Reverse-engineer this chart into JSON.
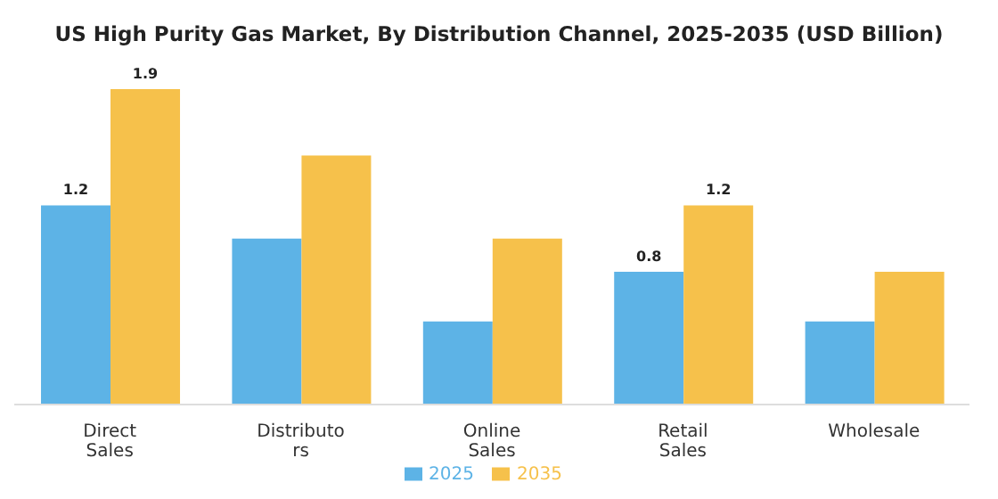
{
  "chart_data": {
    "type": "bar",
    "title": "US High Purity Gas Market, By Distribution Channel, 2025-2035 (USD Billion)",
    "categories": [
      "Direct Sales",
      "Distributors",
      "Online Sales",
      "Retail Sales",
      "Wholesale"
    ],
    "series": [
      {
        "name": "2025",
        "color": "#5db3e6",
        "values": [
          1.2,
          1.0,
          0.5,
          0.8,
          0.5
        ],
        "value_labels": [
          "1.2",
          null,
          null,
          "0.8",
          null
        ]
      },
      {
        "name": "2035",
        "color": "#f6c14b",
        "values": [
          1.9,
          1.5,
          1.0,
          1.2,
          0.8
        ],
        "value_labels": [
          "1.9",
          null,
          null,
          "1.2",
          null
        ]
      }
    ],
    "legend": "bottom",
    "grid": false
  }
}
